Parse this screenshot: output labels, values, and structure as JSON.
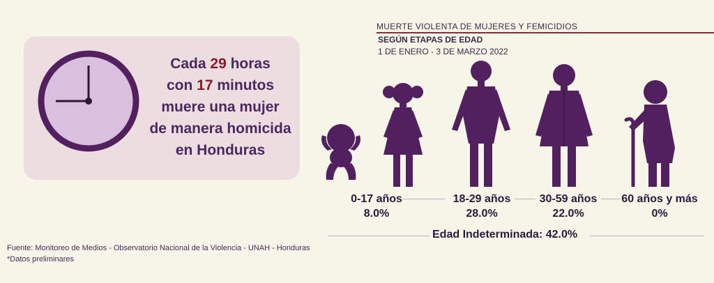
{
  "statement": {
    "prefix": "Cada",
    "hours_value": "29",
    "hours_unit": "horas",
    "connector": "con",
    "minutes_value": "17",
    "minutes_unit": "minutos",
    "line3": "muere una mujer",
    "line4": "de manera homicida",
    "line5": "en Honduras"
  },
  "header": {
    "title": "MUERTE VIOLENTA DE MUJERES Y FEMICIDIOS",
    "subtitle": "SEGÚN ETAPAS DE EDAD",
    "date_range": "1  DE ENERO - 3 DE MARZO 2022"
  },
  "groups": [
    {
      "label": "0-17 años",
      "value": "8.0%"
    },
    {
      "label": "18-29 años",
      "value": "28.0%"
    },
    {
      "label": "30-59 años",
      "value": "22.0%"
    },
    {
      "label": "60 años y más",
      "value": "0%"
    }
  ],
  "undetermined": "Edad Indeterminada: 42.0%",
  "footer": {
    "source": "Fuente:  Monitoreo de Medios - Observatorio Nacional de la Violencia - UNAH - Honduras",
    "note": "*Datos preliminares"
  },
  "colors": {
    "figure": "#52205f",
    "accent": "#8a1a2a",
    "panel": "#ecdde1"
  },
  "icons": [
    "clock-icon",
    "baby-icon",
    "girl-icon",
    "woman-icon",
    "adult-woman-icon",
    "elderly-woman-icon"
  ]
}
